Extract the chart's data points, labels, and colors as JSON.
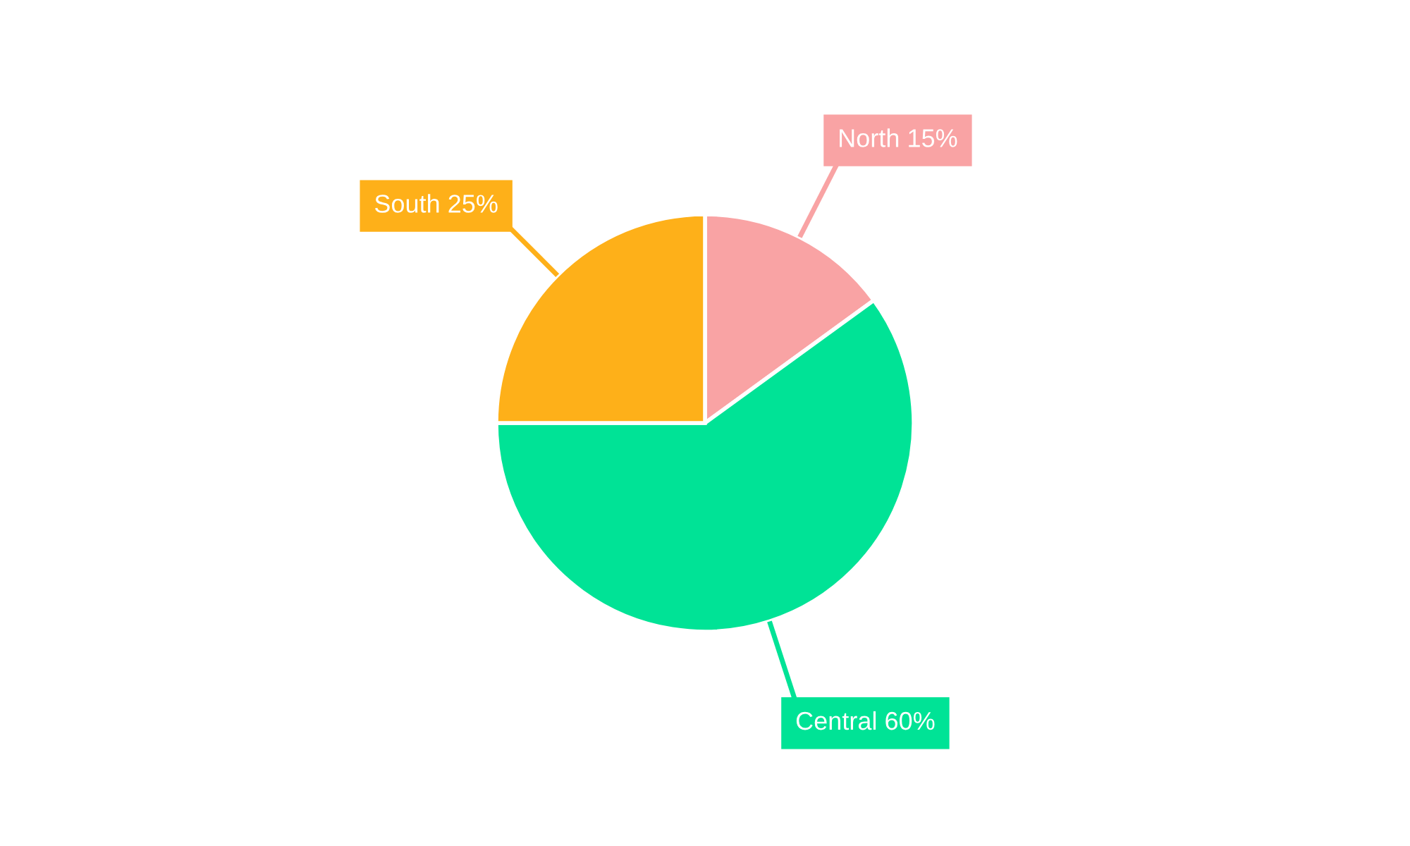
{
  "chart_data": {
    "type": "pie",
    "categories": [
      "North",
      "Central",
      "South"
    ],
    "values": [
      15,
      60,
      25
    ],
    "value_labels": [
      "15%",
      "60%",
      "25%"
    ],
    "colors": [
      "#f9a3a4",
      "#00e396",
      "#feb019"
    ]
  }
}
